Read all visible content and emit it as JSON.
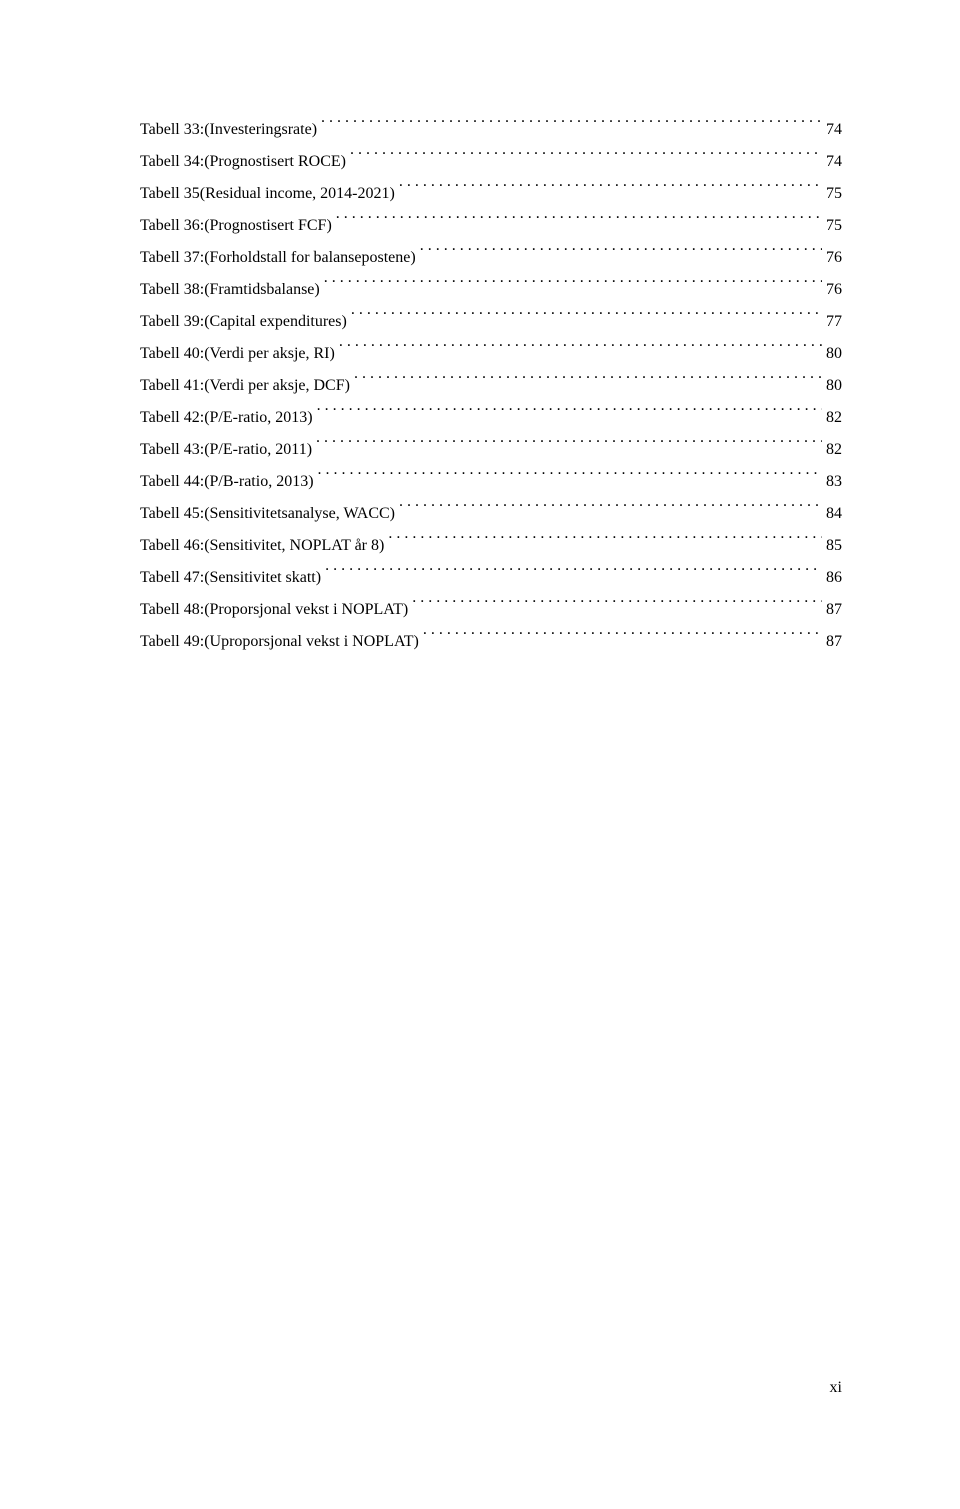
{
  "toc": {
    "entries": [
      {
        "label": "Tabell 33:(Investeringsrate)",
        "page": "74"
      },
      {
        "label": "Tabell 34:(Prognostisert ROCE)",
        "page": "74"
      },
      {
        "label": "Tabell 35(Residual income, 2014-2021)",
        "page": "75"
      },
      {
        "label": "Tabell 36:(Prognostisert FCF)",
        "page": "75"
      },
      {
        "label": "Tabell 37:(Forholdstall for balansepostene)",
        "page": "76"
      },
      {
        "label": "Tabell 38:(Framtidsbalanse)",
        "page": "76"
      },
      {
        "label": "Tabell 39:(Capital expenditures)",
        "page": "77"
      },
      {
        "label": "Tabell 40:(Verdi per aksje, RI)",
        "page": "80"
      },
      {
        "label": "Tabell 41:(Verdi per aksje, DCF)",
        "page": "80"
      },
      {
        "label": "Tabell 42:(P/E-ratio, 2013)",
        "page": "82"
      },
      {
        "label": "Tabell 43:(P/E-ratio, 2011)",
        "page": "82"
      },
      {
        "label": "Tabell 44:(P/B-ratio, 2013)",
        "page": "83"
      },
      {
        "label": "Tabell 45:(Sensitivitetsanalyse, WACC)",
        "page": "84"
      },
      {
        "label": "Tabell 46:(Sensitivitet, NOPLAT år 8)",
        "page": "85"
      },
      {
        "label": "Tabell 47:(Sensitivitet skatt)",
        "page": "86"
      },
      {
        "label": "Tabell 48:(Proporsjonal vekst i NOPLAT)",
        "page": "87"
      },
      {
        "label": "Tabell 49:(Uproporsjonal vekst i NOPLAT)",
        "page": "87"
      }
    ]
  },
  "footer": {
    "page_number": "xi"
  },
  "style": {
    "font_family": "Times New Roman",
    "font_size_pt": 12,
    "text_color": "#000000",
    "background_color": "#ffffff"
  }
}
